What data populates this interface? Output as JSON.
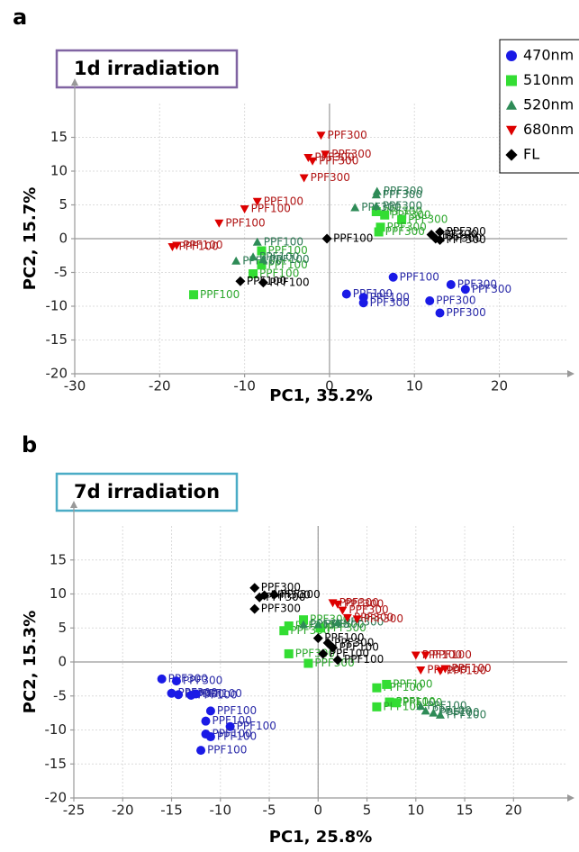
{
  "chart_data": [
    {
      "type": "scatter",
      "panel": "a",
      "title": "1d irradiation",
      "title_border": "#8064a2",
      "xlabel": "PC1, 35.2%",
      "ylabel": "PC2, 15.7%",
      "xlim": [
        -30,
        28
      ],
      "ylim": [
        -20,
        20
      ],
      "xticks": [
        -30,
        -20,
        -10,
        0,
        10,
        20
      ],
      "yticks": [
        -20,
        -15,
        -10,
        -5,
        0,
        5,
        10,
        15
      ],
      "grid": true,
      "legend": "upper right",
      "series": [
        {
          "name": "470nm",
          "color": "#1a1ae6",
          "label_color": "#2a2aa8",
          "marker": "circle",
          "x": [
            2,
            4,
            4,
            7.5,
            11.8,
            13,
            14.3,
            16
          ],
          "y": [
            -8.2,
            -8.7,
            -9.5,
            -5.7,
            -9.2,
            -11,
            -6.8,
            -7.5
          ],
          "point_labels": [
            "PPF100",
            "PPF100",
            "PPF300",
            "PPF100",
            "PPF300",
            "PPF300",
            "PPF300",
            "PPF300"
          ]
        },
        {
          "name": "510nm",
          "color": "#33dd33",
          "label_color": "#2fa82f",
          "marker": "square",
          "x": [
            -16,
            -9,
            -8,
            -8,
            5.5,
            6.5,
            8.5,
            5.8,
            6
          ],
          "y": [
            -8.3,
            -5.2,
            -3.9,
            -1.8,
            4,
            3.5,
            2.8,
            1,
            1.7
          ],
          "point_labels": [
            "PPF100",
            "PPF100",
            "PPF100",
            "PPF100",
            "PPF300",
            "PPF300",
            "PPF300",
            "PPF300",
            "PPF300"
          ]
        },
        {
          "name": "520nm",
          "color": "#2e8b57",
          "label_color": "#2e7a55",
          "marker": "triangle-up",
          "x": [
            -11,
            -9,
            -7.8,
            -8.5,
            3,
            5.5,
            5.6,
            5.5
          ],
          "y": [
            -3.3,
            -2.7,
            -3.1,
            -0.5,
            4.6,
            6.5,
            7,
            4.8
          ],
          "point_labels": [
            "PPF100",
            "PPF100",
            "PPF100",
            "PPF100",
            "PPF300",
            "PPF300",
            "PPF300",
            "PPF300"
          ]
        },
        {
          "name": "680nm",
          "color": "#dd0000",
          "label_color": "#b01515",
          "marker": "triangle-down",
          "x": [
            -18.5,
            -18,
            -13,
            -10,
            -8.5,
            -3,
            -2,
            -2.5,
            -0.5,
            -1
          ],
          "y": [
            -1.2,
            -1,
            2.3,
            4.4,
            5.5,
            9,
            11.5,
            12,
            12.5,
            15.3
          ],
          "point_labels": [
            "PPF100",
            "PPF100",
            "PPF100",
            "PPF100",
            "PPF100",
            "PPF300",
            "PPF300",
            "PPF300",
            "PPF300",
            "PPF300"
          ]
        },
        {
          "name": "FL",
          "color": "#000000",
          "label_color": "#000000",
          "marker": "diamond",
          "x": [
            -10.5,
            -7.8,
            -0.3,
            12,
            12.5,
            13,
            13
          ],
          "y": [
            -6.3,
            -6.5,
            0,
            0.6,
            0,
            1,
            -0.2
          ],
          "point_labels": [
            "PPF100",
            "PPF100",
            "PPF100",
            "PPF300",
            "PPF300",
            "PPF300",
            "PPF300"
          ]
        }
      ]
    },
    {
      "type": "scatter",
      "panel": "b",
      "title": "7d irradiation",
      "title_border": "#4bacc6",
      "xlabel": "PC1, 25.8%",
      "ylabel": "PC2, 15.3%",
      "xlim": [
        -25,
        25.5
      ],
      "ylim": [
        -20,
        20
      ],
      "xticks": [
        -25,
        -20,
        -15,
        -10,
        -5,
        0,
        5,
        10,
        15,
        20
      ],
      "yticks": [
        -20,
        -15,
        -10,
        -5,
        0,
        5,
        10,
        15
      ],
      "grid": true,
      "series": [
        {
          "color": "#1a1ae6",
          "label_color": "#2a2aa8",
          "marker": "circle",
          "x": [
            -16,
            -14.5,
            -15,
            -14.3,
            -13,
            -12.5,
            -11,
            -11.5,
            -9,
            -11.5,
            -11,
            -12
          ],
          "y": [
            -2.5,
            -2.8,
            -4.6,
            -4.8,
            -4.9,
            -4.7,
            -7.2,
            -8.7,
            -9.5,
            -10.6,
            -11,
            -13
          ],
          "point_labels": [
            "PPF300",
            "PPF300",
            "PPF300",
            "PPF300",
            "PPF100",
            "PPF100",
            "PPF100",
            "PPF100",
            "PPF100",
            "PPF100",
            "PPF100",
            "PPF100"
          ]
        },
        {
          "color": "#33dd33",
          "label_color": "#2fa82f",
          "marker": "square",
          "x": [
            -3,
            -1,
            -3.5,
            -3,
            -1.5,
            0.2,
            6,
            7,
            7.3,
            6,
            8
          ],
          "y": [
            1.2,
            -0.2,
            4.6,
            5.3,
            6.2,
            5,
            -3.8,
            -3.3,
            -5.9,
            -6.6,
            -6
          ],
          "point_labels": [
            "PPF300",
            "PPF300",
            "PPF300",
            "PPF300",
            "PPF300",
            "PPF300",
            "PPF100",
            "PPF100",
            "PPF100",
            "PPF100",
            "PPF100"
          ]
        },
        {
          "color": "#2e8b57",
          "label_color": "#2e7a55",
          "marker": "triangle-up",
          "x": [
            -1.5,
            0,
            2,
            10.5,
            11,
            11.8,
            12.5
          ],
          "y": [
            5.5,
            5.5,
            5.8,
            -6.5,
            -7.2,
            -7.5,
            -7.8
          ],
          "point_labels": [
            "PPF300",
            "PPF300",
            "PPF300",
            "PPF100",
            "PPF100",
            "PPF100",
            "PPF100"
          ]
        },
        {
          "color": "#dd0000",
          "label_color": "#b01515",
          "marker": "triangle-down",
          "x": [
            1.5,
            2,
            2.5,
            3,
            4,
            10,
            11,
            10.5,
            12.5,
            13
          ],
          "y": [
            8.7,
            8.5,
            7.6,
            6.5,
            6.3,
            1,
            1,
            -1.2,
            -1.3,
            -1
          ],
          "point_labels": [
            "PPF300",
            "PPF300",
            "PPF300",
            "PPF300",
            "PPF300",
            "PPF100",
            "PPF100",
            "PPF100",
            "PPF100",
            "PPF100"
          ]
        },
        {
          "color": "#000000",
          "label_color": "#000000",
          "marker": "diamond",
          "x": [
            -6.5,
            -5.5,
            -6,
            -4.5,
            -6.5,
            0,
            1.5,
            0.5,
            2,
            1
          ],
          "y": [
            10.9,
            9.8,
            9.5,
            9.9,
            7.8,
            3.5,
            2.1,
            1.2,
            0.3,
            2.8
          ],
          "point_labels": [
            "PPF300",
            "PPF300",
            "PPF300",
            "PPF300",
            "PPF300",
            "PPF100",
            "PPF100",
            "PPF100",
            "PPF100",
            "PPF300"
          ]
        }
      ]
    }
  ]
}
